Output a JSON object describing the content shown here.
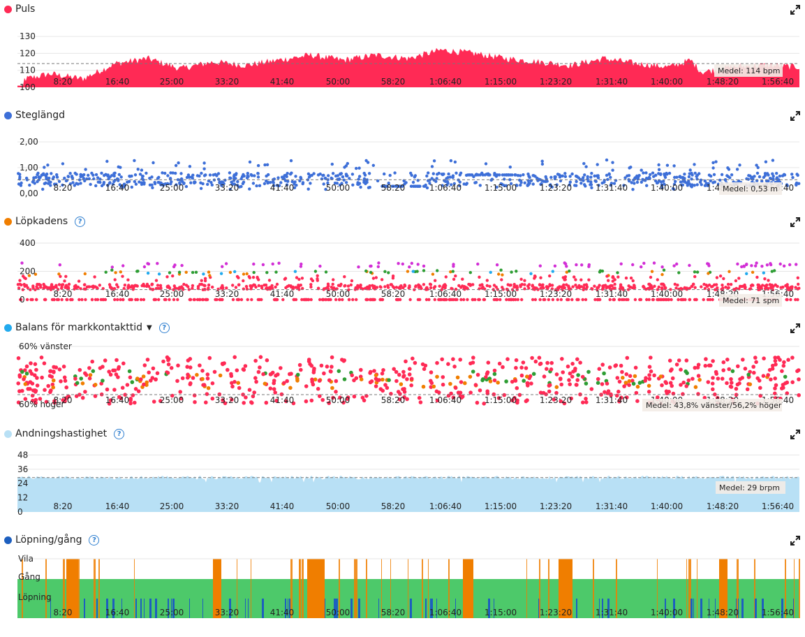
{
  "x_tick_labels": [
    "8:20",
    "16:40",
    "25:00",
    "33:20",
    "41:40",
    "50:00",
    "58:20",
    "1:06:40",
    "1:15:00",
    "1:23:20",
    "1:31:40",
    "1:40:00",
    "1:48:20",
    "1:56:40"
  ],
  "colors": {
    "red": "#ff2a55",
    "blue": "#3d6fd8",
    "orange": "#f07e00",
    "lightblue": "#b8e0f5",
    "green": "#4dc96a",
    "darkblue": "#1d5fbf",
    "purple": "#d22fd6",
    "teal": "#22aaee",
    "dgreen": "#2d9d33"
  },
  "panels": [
    {
      "id": "puls",
      "title": "Puls",
      "color": "#ff2a55",
      "has_help": false,
      "has_caret": false,
      "avg_label": "Medel: 114 bpm"
    },
    {
      "id": "steglangd",
      "title": "Steglängd",
      "color": "#3d6fd8",
      "has_help": false,
      "has_caret": false,
      "avg_label": "Medel: 0,53 m"
    },
    {
      "id": "lopkadens",
      "title": "Löpkadens",
      "color": "#f07e00",
      "has_help": true,
      "has_caret": false,
      "avg_label": "Medel: 71 spm"
    },
    {
      "id": "balans",
      "title": "Balans för markkontakttid",
      "color": "#22aaee",
      "has_help": true,
      "has_caret": true,
      "avg_label": "Medel: 43,8% vänster/56,2% höger"
    },
    {
      "id": "andning",
      "title": "Andningshastighet",
      "color": "#b8e0f5",
      "has_help": true,
      "has_caret": false,
      "avg_label": "Medel: 29 brpm"
    },
    {
      "id": "lopning",
      "title": "Löpning/gång",
      "color": "#1d5fbf",
      "has_help": true,
      "has_caret": false,
      "avg_label": ""
    }
  ],
  "help_mark": "?",
  "caret_mark": "▼",
  "chart_data": [
    {
      "type": "area",
      "title": "Puls",
      "y_ticks": [
        "130",
        "120",
        "110",
        "100"
      ],
      "ylim": [
        100,
        135
      ],
      "x_range_sec": [
        0,
        7200
      ],
      "mean": 114,
      "series_outline": [
        [
          0,
          104
        ],
        [
          300,
          108
        ],
        [
          600,
          105
        ],
        [
          900,
          114
        ],
        [
          1200,
          117
        ],
        [
          1500,
          111
        ],
        [
          1800,
          115
        ],
        [
          2100,
          113
        ],
        [
          2400,
          116
        ],
        [
          2700,
          119
        ],
        [
          3000,
          116
        ],
        [
          3300,
          119
        ],
        [
          3600,
          117
        ],
        [
          3900,
          122
        ],
        [
          4200,
          120
        ],
        [
          4500,
          117
        ],
        [
          4800,
          115
        ],
        [
          5100,
          113
        ],
        [
          5400,
          117
        ],
        [
          5700,
          114
        ],
        [
          6000,
          112
        ],
        [
          6200,
          116
        ],
        [
          6300,
          109
        ],
        [
          6600,
          112
        ],
        [
          6900,
          113
        ],
        [
          7200,
          112
        ]
      ]
    },
    {
      "type": "scatter",
      "title": "Steglängd",
      "y_ticks": [
        "2,00",
        "1,00",
        "0,00"
      ],
      "ylim": [
        0,
        2.3
      ],
      "mean": 0.53,
      "x_range_sec": [
        0,
        7200
      ]
    },
    {
      "type": "scatter",
      "title": "Löpkadens",
      "y_ticks": [
        "400",
        "200",
        "0"
      ],
      "ylim": [
        0,
        420
      ],
      "mean": 71,
      "x_range_sec": [
        0,
        7200
      ]
    },
    {
      "type": "scatter",
      "title": "Balans för markkontakttid",
      "y_ticks": [
        "60% vänster",
        "60% höger"
      ],
      "mean_left_percent": 43.8,
      "mean_right_percent": 56.2,
      "x_range_sec": [
        0,
        7200
      ]
    },
    {
      "type": "area",
      "title": "Andningshastighet",
      "y_ticks": [
        "48",
        "36",
        "24",
        "12",
        "0"
      ],
      "ylim": [
        0,
        50
      ],
      "mean": 29,
      "x_range_sec": [
        0,
        7200
      ]
    },
    {
      "type": "heatmap",
      "title": "Löpning/gång",
      "y_ticks": [
        "Vila",
        "Gång",
        "Löpning"
      ],
      "x_range_sec": [
        0,
        7200
      ]
    }
  ]
}
